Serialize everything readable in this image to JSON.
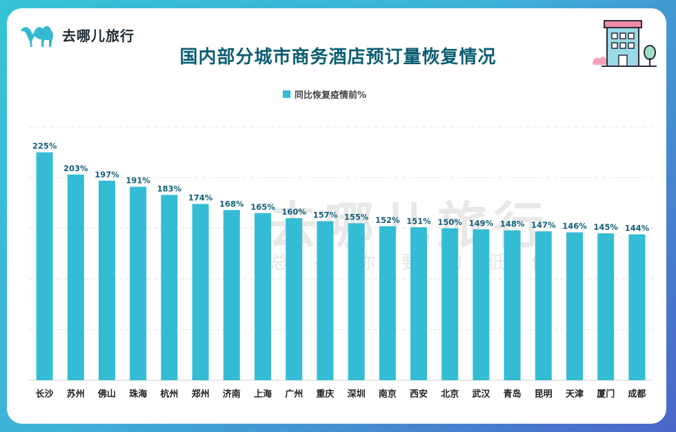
{
  "brand": {
    "logo_text": "去哪儿旅行"
  },
  "watermark": {
    "main": "去哪儿旅行",
    "sub": "总有你要的低价"
  },
  "colors": {
    "bar": "#34bcd5",
    "title": "#0c5d72",
    "value_label": "#14607a"
  },
  "chart_data": {
    "type": "bar",
    "title": "国内部分城市商务酒店预订量恢复情况",
    "legend": {
      "position": "top-center",
      "entries": [
        "同比恢复疫情前%"
      ]
    },
    "categories": [
      "长沙",
      "苏州",
      "佛山",
      "珠海",
      "杭州",
      "郑州",
      "济南",
      "上海",
      "广州",
      "重庆",
      "深圳",
      "南京",
      "西安",
      "北京",
      "武汉",
      "青岛",
      "昆明",
      "天津",
      "厦门",
      "成都"
    ],
    "series": [
      {
        "name": "同比恢复疫情前%",
        "values": [
          225,
          203,
          197,
          191,
          183,
          174,
          168,
          165,
          160,
          157,
          155,
          152,
          151,
          150,
          149,
          148,
          147,
          146,
          145,
          144
        ]
      }
    ],
    "value_labels": [
      "225%",
      "203%",
      "197%",
      "191%",
      "183%",
      "174%",
      "168%",
      "165%",
      "160%",
      "157%",
      "155%",
      "152%",
      "151%",
      "150%",
      "149%",
      "148%",
      "147%",
      "146%",
      "145%",
      "144%"
    ],
    "ylim": [
      0,
      250
    ],
    "grid": true
  }
}
